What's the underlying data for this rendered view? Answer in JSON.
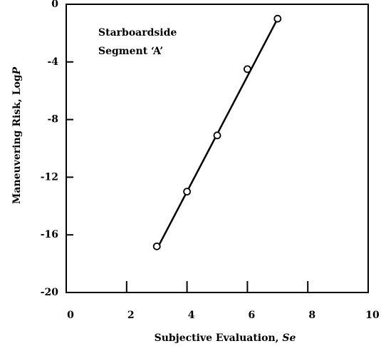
{
  "chart_data": {
    "type": "scatter",
    "annotation": [
      "Starboardside",
      "Segment ‘A’"
    ],
    "xlabel": "Subjective Evaluation, ",
    "xlabel_var": "Se",
    "ylabel": "Maneuvering Risk, Log",
    "ylabel_var": "P",
    "x": [
      3,
      4,
      5,
      6,
      7
    ],
    "values": [
      -16.8,
      -13,
      -9.1,
      -4.5,
      -1
    ],
    "fit_line": {
      "x": [
        3,
        7
      ],
      "values": [
        -17,
        -1
      ]
    },
    "color": "#000000",
    "xlim": [
      0,
      10
    ],
    "xticks": [
      0,
      2,
      4,
      6,
      8,
      10
    ],
    "ylim": [
      -20,
      0
    ],
    "yticks": [
      -20,
      -16,
      -12,
      -8,
      -4,
      0
    ]
  }
}
